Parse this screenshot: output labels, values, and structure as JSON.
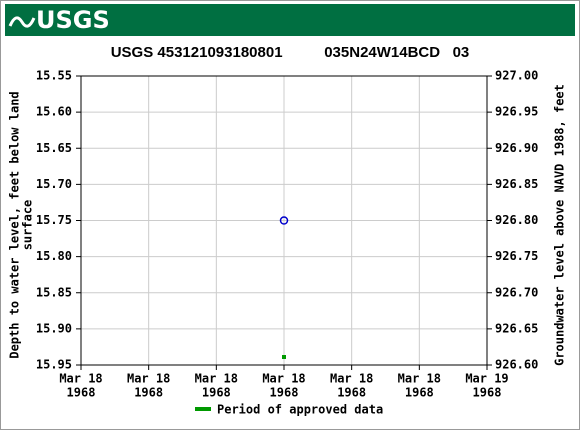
{
  "header": {
    "logo": "USGS"
  },
  "chart_data": {
    "type": "scatter",
    "title": "USGS 453121093180801          035N24W14BCD   03",
    "ylabel": [
      "Depth to water level, feet below land",
      "surface"
    ],
    "y2label": "Groundwater level above NAVD 1988, feet",
    "categories": [
      [
        "Mar 18",
        "1968"
      ],
      [
        "Mar 18",
        "1968"
      ],
      [
        "Mar 18",
        "1968"
      ],
      [
        "Mar 18",
        "1968"
      ],
      [
        "Mar 18",
        "1968"
      ],
      [
        "Mar 18",
        "1968"
      ],
      [
        "Mar 19",
        "1968"
      ]
    ],
    "values": [
      null,
      null,
      null,
      15.75,
      null,
      null,
      null
    ],
    "color": "#0000cc",
    "ylim": [
      15.55,
      15.95
    ],
    "yticks": [
      15.55,
      {
        "value": 15.6,
        "label": "15.60"
      },
      15.65,
      {
        "value": 15.7,
        "label": "15.70"
      },
      15.75,
      {
        "value": 15.8,
        "label": "15.80"
      },
      15.85,
      {
        "value": 15.9,
        "label": "15.90"
      },
      15.95
    ],
    "y2lim": [
      927.0,
      926.6
    ],
    "y2ticks": [
      {
        "value": 927.0,
        "label": "927.00"
      },
      926.95,
      {
        "value": 926.9,
        "label": "926.90"
      },
      926.85,
      {
        "value": 926.8,
        "label": "926.80"
      },
      926.75,
      {
        "value": 926.7,
        "label": "926.70"
      },
      926.65,
      {
        "value": 926.6,
        "label": "926.60"
      }
    ],
    "grid": true,
    "legend": {
      "name": "Period of approved data",
      "color": "#009900"
    }
  }
}
